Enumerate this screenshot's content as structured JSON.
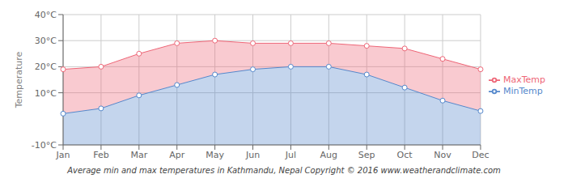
{
  "chart_data": {
    "type": "area",
    "ylabel": "Temperature",
    "subtitle": "Average min and max temperatures in Kathmandu, Nepal   Copyright © 2016 www.weatherandclimate.com",
    "categories": [
      "Jan",
      "Feb",
      "Mar",
      "Apr",
      "May",
      "Jun",
      "Jul",
      "Aug",
      "Sep",
      "Oct",
      "Nov",
      "Dec"
    ],
    "series": [
      {
        "name": "MaxTemp",
        "color": "#ee6677",
        "values": [
          19,
          20,
          25,
          29,
          30,
          29,
          29,
          29,
          28,
          27,
          23,
          19
        ]
      },
      {
        "name": "MinTemp",
        "color": "#5588cc",
        "values": [
          2,
          4,
          9,
          13,
          17,
          19,
          20,
          20,
          17,
          12,
          7,
          3
        ]
      }
    ],
    "ylim": [
      -10,
      40
    ],
    "yticks": [
      {
        "value": -10,
        "label": "-10°C"
      },
      {
        "value": 10,
        "label": "10°C"
      },
      {
        "value": 20,
        "label": "20°C"
      },
      {
        "value": 30,
        "label": "30°C"
      },
      {
        "value": 40,
        "label": "40°C"
      }
    ],
    "grid": true,
    "legend": "right"
  }
}
